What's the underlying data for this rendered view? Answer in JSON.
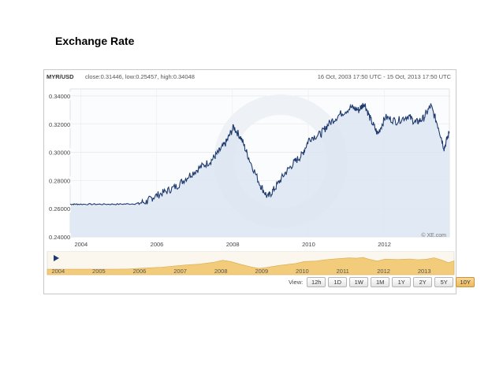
{
  "slide": {
    "title": "Exchange Rate"
  },
  "header": {
    "pair": "MYR/USD",
    "stats": "close:0.31446, low:0.25457, high:0.34048",
    "range": "16 Oct, 2003 17:50 UTC - 15 Oct, 2013 17:50 UTC"
  },
  "watermark": "© XE.com",
  "view_label": "View:",
  "view_buttons": [
    "12h",
    "1D",
    "1W",
    "1M",
    "1Y",
    "2Y",
    "5Y",
    "10Y"
  ],
  "view_active": "10Y",
  "colors": {
    "line": "#1f3a6e",
    "area": "#dbe5f1",
    "navigator_fill": "#f2cc7a",
    "active_button": "#eeb95a"
  },
  "chart_data": [
    {
      "type": "line",
      "ylim": [
        0.24,
        0.345
      ],
      "grid": true,
      "x_tick_labels": [
        "2004",
        "2006",
        "2008",
        "2010",
        "2012"
      ],
      "y_tick_labels": [
        "0.24000",
        "0.26000",
        "0.28000",
        "0.30000",
        "0.32000",
        "0.34000"
      ],
      "y_ticks": [
        0.24,
        0.26,
        0.28,
        0.3,
        0.32,
        0.34
      ],
      "x": [
        2003.79,
        2004.0,
        2004.5,
        2005.0,
        2005.5,
        2005.8,
        2006.0,
        2006.3,
        2006.6,
        2006.9,
        2007.2,
        2007.5,
        2007.7,
        2007.9,
        2008.1,
        2008.3,
        2008.5,
        2008.8,
        2009.0,
        2009.2,
        2009.45,
        2009.7,
        2009.9,
        2010.1,
        2010.4,
        2010.6,
        2010.9,
        2011.2,
        2011.4,
        2011.55,
        2011.7,
        2011.9,
        2012.1,
        2012.4,
        2012.7,
        2012.9,
        2013.1,
        2013.3,
        2013.5,
        2013.65,
        2013.79
      ],
      "values": [
        0.2632,
        0.2632,
        0.2632,
        0.2632,
        0.2635,
        0.265,
        0.2685,
        0.272,
        0.276,
        0.283,
        0.289,
        0.294,
        0.3,
        0.307,
        0.318,
        0.31,
        0.296,
        0.277,
        0.268,
        0.275,
        0.285,
        0.293,
        0.298,
        0.31,
        0.313,
        0.32,
        0.327,
        0.332,
        0.33,
        0.335,
        0.324,
        0.313,
        0.325,
        0.322,
        0.326,
        0.321,
        0.324,
        0.333,
        0.318,
        0.303,
        0.3145
      ]
    },
    {
      "type": "area",
      "x_tick_labels": [
        "2004",
        "2005",
        "2006",
        "2007",
        "2008",
        "2009",
        "2010",
        "2011",
        "2012",
        "2013"
      ]
    }
  ]
}
